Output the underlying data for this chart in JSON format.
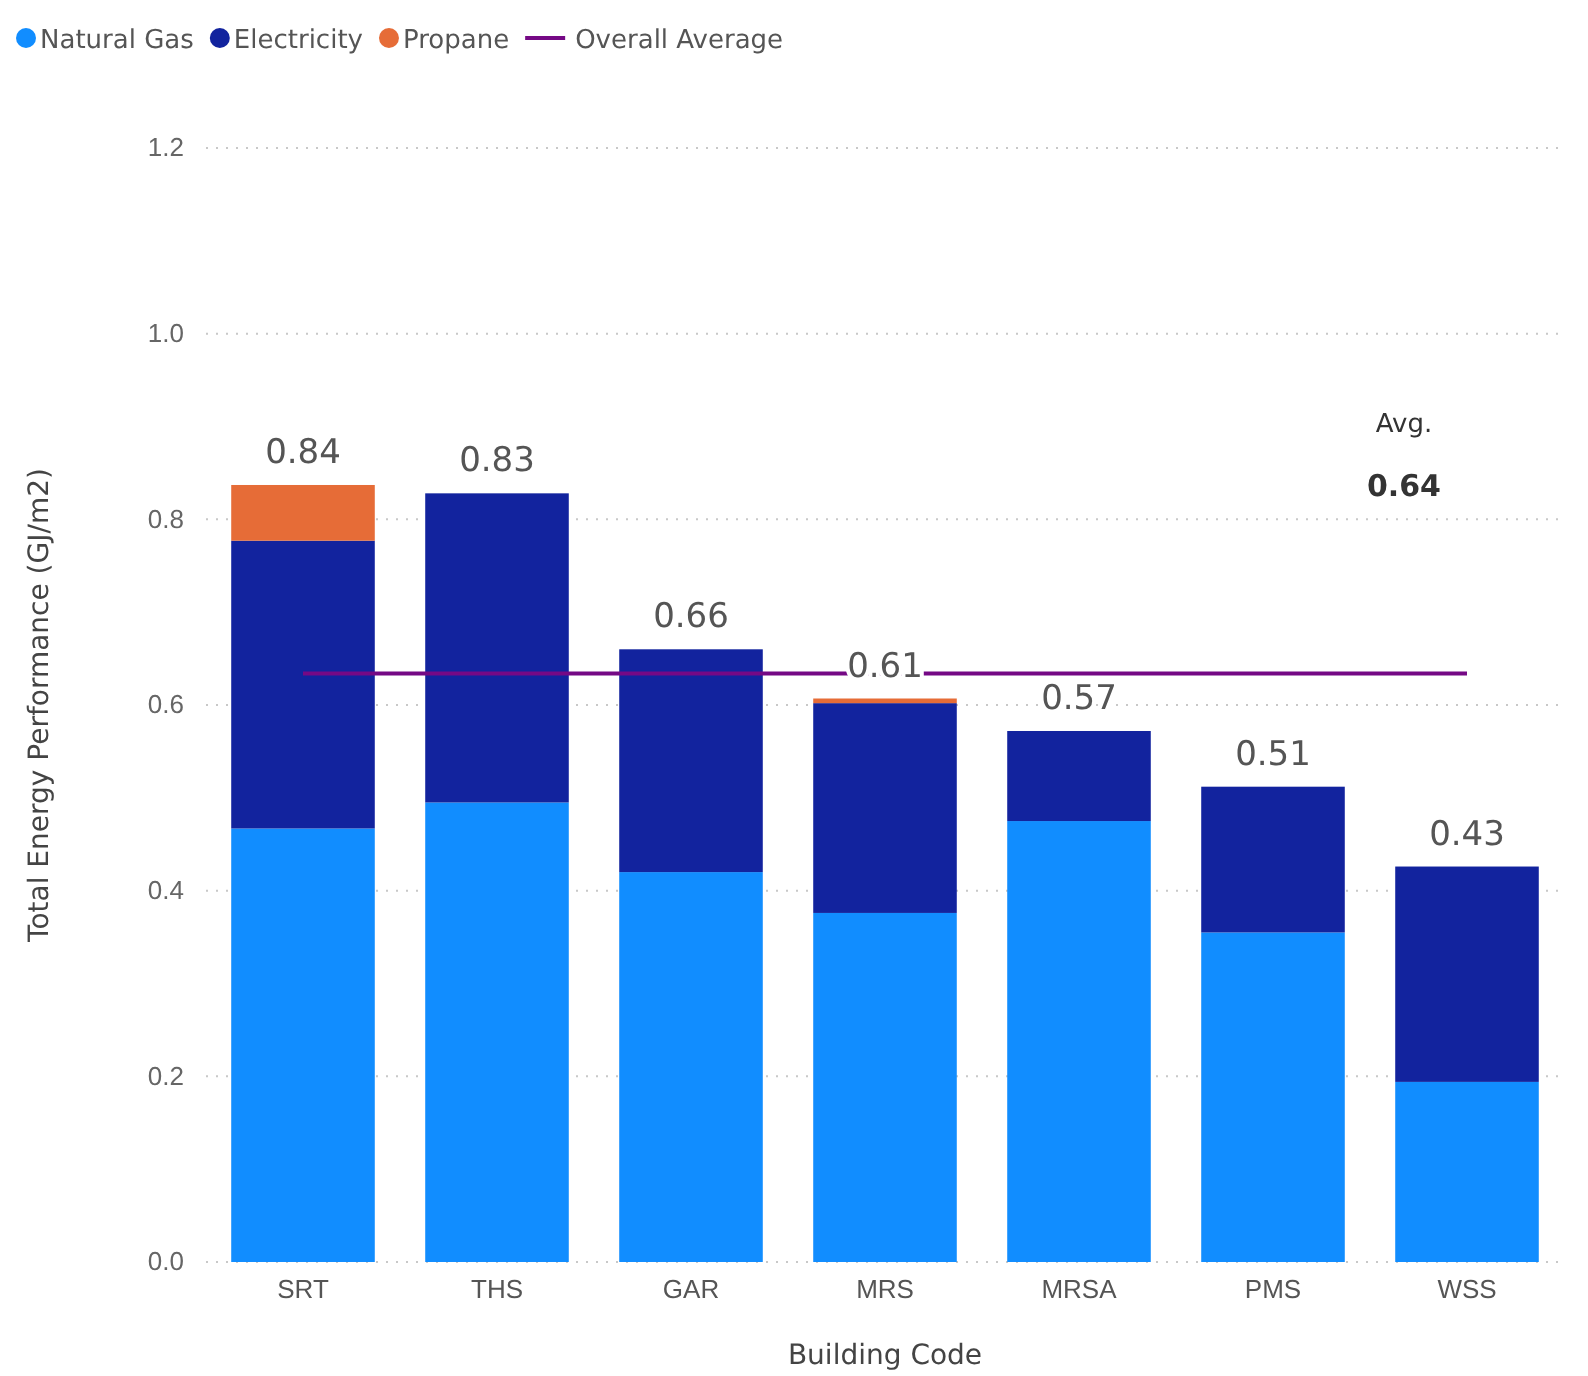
{
  "chart_data": {
    "type": "bar",
    "stacked": true,
    "xlabel": "Building Code",
    "ylabel": "Total Energy Performance (GJ/m2)",
    "categories": [
      "SRT",
      "THS",
      "GAR",
      "MRS",
      "MRSA",
      "PMS",
      "WSS"
    ],
    "series": [
      {
        "name": "Natural Gas",
        "color": "#118dff",
        "values": [
          0.467,
          0.495,
          0.42,
          0.376,
          0.475,
          0.355,
          0.194
        ]
      },
      {
        "name": "Electricity",
        "color": "#12239e",
        "values": [
          0.31,
          0.333,
          0.24,
          0.226,
          0.097,
          0.157,
          0.232
        ]
      },
      {
        "name": "Propane",
        "color": "#e66c37",
        "values": [
          0.06,
          null,
          null,
          0.005,
          null,
          null,
          null
        ]
      },
      {
        "name": "Overall Average",
        "type": "line",
        "color": "#750985",
        "values": [
          0.634,
          0.634,
          0.634,
          0.634,
          0.634,
          0.634,
          0.634
        ]
      }
    ],
    "totals": [
      "0.84",
      "0.83",
      "0.66",
      "0.61",
      "0.57",
      "0.51",
      "0.43"
    ],
    "annotations": [
      "Avg.",
      "0.64"
    ],
    "ylim": [
      0,
      1.2
    ],
    "yticks": [
      {
        "value": 0,
        "label": "0.0"
      },
      0.2,
      0.4,
      0.6,
      0.8,
      {
        "value": 1,
        "label": "1.0"
      },
      1.2
    ],
    "grid": "y",
    "legend": "top left"
  }
}
